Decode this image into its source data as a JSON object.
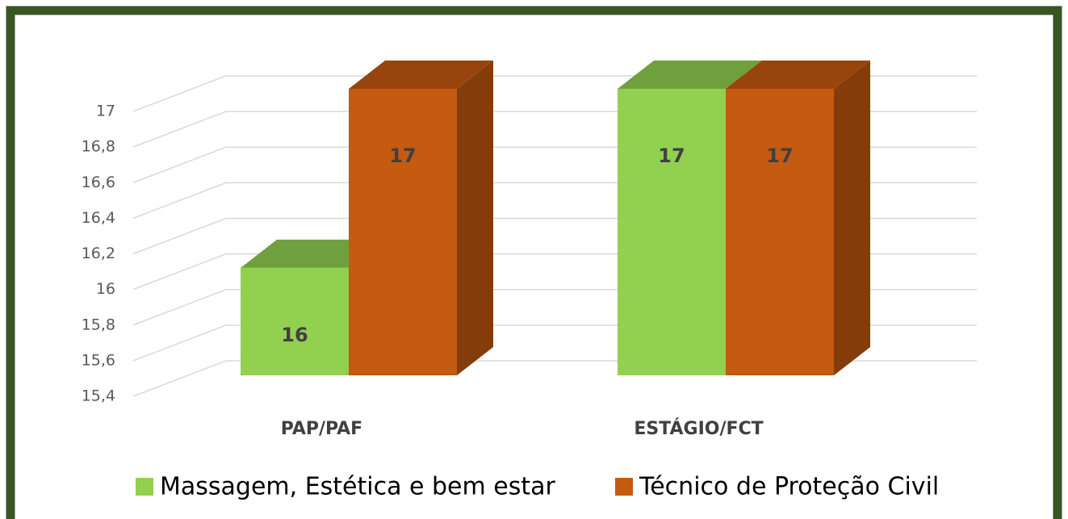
{
  "chart_data": {
    "type": "bar3d",
    "categories": [
      "PAP/PAF",
      "ESTÁGIO/FCT"
    ],
    "series": [
      {
        "name": "Massagem, Estética e bem estar",
        "color": "#92d050",
        "values": [
          16,
          17
        ]
      },
      {
        "name": "Técnico de Proteção Civil",
        "color": "#c55a11",
        "values": [
          17,
          17
        ]
      }
    ],
    "ylim": [
      15.4,
      17
    ],
    "yticks": [
      {
        "value": 15.4,
        "label": "15,4"
      },
      {
        "value": 15.6,
        "label": "15,6"
      },
      {
        "value": 15.8,
        "label": "15,8"
      },
      16,
      {
        "value": 16.2,
        "label": "16,2"
      },
      {
        "value": 16.4,
        "label": "16,4"
      },
      {
        "value": 16.6,
        "label": "16,6"
      },
      {
        "value": 16.8,
        "label": "16,8"
      },
      17
    ],
    "grid": true,
    "legend": "bottom"
  }
}
